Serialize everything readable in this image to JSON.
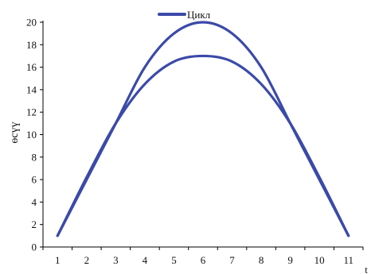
{
  "chart_data": {
    "type": "line",
    "title": "",
    "legend": {
      "label": "Цикл",
      "placement": "top-center"
    },
    "xlabel": "t",
    "ylabel": "өсүү",
    "x": [
      1,
      2,
      3,
      4,
      5,
      6,
      7,
      8,
      9,
      10,
      11
    ],
    "xlim": [
      0.5,
      11.5
    ],
    "ylim": [
      0,
      20
    ],
    "yticks": [
      0,
      2,
      4,
      6,
      8,
      10,
      12,
      14,
      16,
      18,
      20
    ],
    "xticks": [
      1,
      2,
      3,
      4,
      5,
      6,
      7,
      8,
      9,
      10,
      11
    ],
    "grid": false,
    "line_color": "#3b4aa8",
    "series": [
      {
        "values": [
          1,
          6,
          11,
          16,
          19,
          20,
          19,
          16,
          11,
          6,
          1
        ]
      },
      {
        "values": [
          1,
          6.2,
          11,
          14.5,
          16.5,
          17,
          16.5,
          14.5,
          11,
          6.2,
          1
        ]
      }
    ]
  }
}
